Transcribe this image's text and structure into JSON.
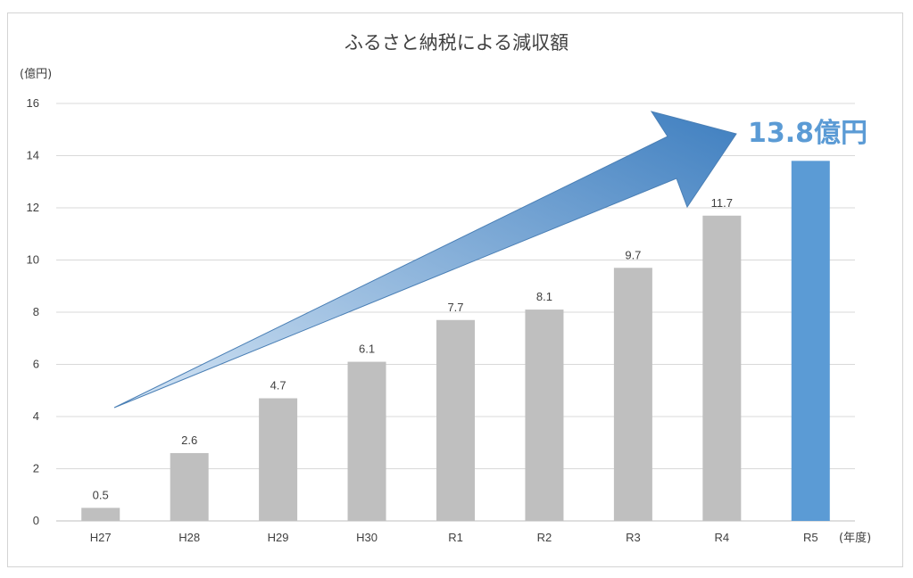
{
  "chart_data": {
    "type": "bar",
    "title": "ふるさと納税による減収額",
    "ylabel": "(億円)",
    "xlabel": "(年度)",
    "ylim": [
      0,
      16
    ],
    "yticks": [
      0,
      2,
      4,
      6,
      8,
      10,
      12,
      14,
      16
    ],
    "grid": true,
    "categories": [
      "H27",
      "H28",
      "H29",
      "H30",
      "R1",
      "R2",
      "R3",
      "R4",
      "R5"
    ],
    "series": [
      {
        "values": [
          0.5,
          2.6,
          4.7,
          6.1,
          7.7,
          8.1,
          9.7,
          11.7,
          13.8
        ],
        "data_labels": [
          "0.5",
          "2.6",
          "4.7",
          "6.1",
          "7.7",
          "8.1",
          "9.7",
          "11.7",
          ""
        ]
      }
    ],
    "highlight_category": "R5",
    "annotation": "13.8億円",
    "colors": {
      "bar": "#bfbfbf",
      "highlight": "#5b9bd5",
      "grid": "#d9d9d9",
      "arrow_light": "#d6e6f5",
      "arrow_dark": "#3f7fc0"
    }
  }
}
